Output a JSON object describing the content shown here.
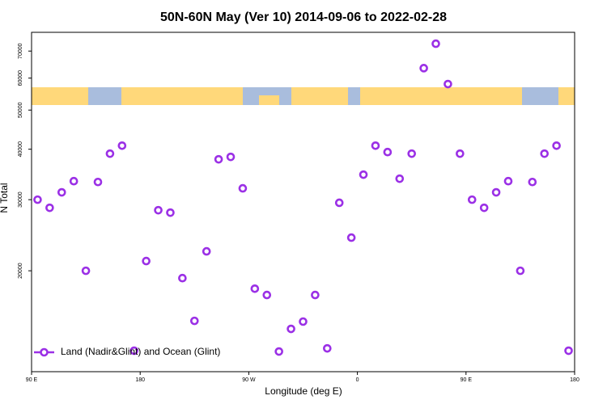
{
  "chart_data": {
    "type": "scatter",
    "title": "50N-60N May (Ver 10)   2014-09-06 to 2022-02-28",
    "x_label": "Longitude (deg E)",
    "y_label": "N Total",
    "y_log": true,
    "legend_position": "lower left",
    "xlim": [
      90,
      540
    ],
    "ylim": [
      11250,
      77900
    ],
    "xticks": [
      {
        "value": 90,
        "label": "90 E"
      },
      {
        "value": 180,
        "label": "180"
      },
      {
        "value": 270,
        "label": "90 W"
      },
      {
        "value": 360,
        "label": "0"
      },
      {
        "value": 450,
        "label": "90 E"
      },
      {
        "value": 540,
        "label": "180"
      }
    ],
    "yticks": [
      20000,
      30000,
      40000,
      50000,
      60000,
      70000
    ],
    "series": [
      {
        "name": "Land (Nadir&Glint) and Ocean (Glint)",
        "color": "#9b30e6",
        "x": [
          95,
          105,
          115,
          125,
          135,
          145,
          155,
          165,
          175,
          185,
          195,
          205,
          215,
          225,
          235,
          245,
          255,
          265,
          275,
          285,
          295,
          305,
          315,
          325,
          335,
          345,
          355,
          365,
          375,
          385,
          395,
          405,
          415,
          425,
          435,
          445,
          455,
          465,
          475,
          485,
          495,
          505,
          515,
          525,
          535
        ],
        "values": [
          30000,
          28640,
          31280,
          33340,
          20000,
          33180,
          39000,
          40820,
          12680,
          21140,
          28250,
          27860,
          19180,
          15030,
          22340,
          37760,
          38290,
          32000,
          18060,
          17420,
          12620,
          14360,
          14970,
          17420,
          12850,
          29470,
          24160,
          34600,
          40820,
          39350,
          33810,
          39000,
          63500,
          73000,
          58000,
          39000,
          30000,
          28640,
          31280,
          33340,
          20000,
          33180,
          39000,
          40820,
          12680
        ]
      }
    ]
  }
}
